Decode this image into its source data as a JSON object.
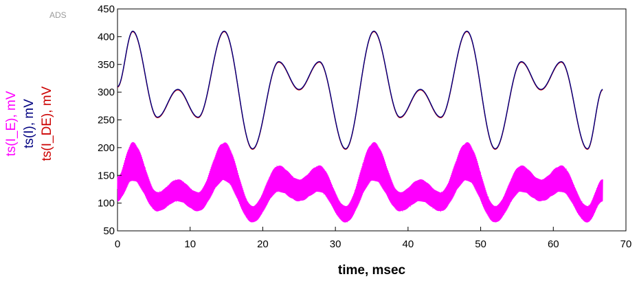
{
  "chart_data": {
    "type": "line",
    "watermark": "ADS",
    "xlabel": "time, msec",
    "ylabels": [
      {
        "text": "ts(I_E), mV",
        "color": "#ff00ff"
      },
      {
        "text": "ts(I), mV",
        "color": "#000080"
      },
      {
        "text": "ts(I_DE), mV",
        "color": "#cc0000"
      }
    ],
    "xlim": [
      0,
      70
    ],
    "ylim": [
      50,
      450
    ],
    "xticks": [
      0,
      10,
      20,
      30,
      40,
      50,
      60,
      70
    ],
    "yticks": [
      50,
      100,
      150,
      200,
      250,
      300,
      350,
      400,
      450
    ],
    "grid": false,
    "series": [
      {
        "name": "ts(I_DE), mV",
        "color": "#cc0000",
        "x": [
          0,
          2.1,
          5.5,
          8.3,
          11.1,
          14.7,
          18.6,
          22.2,
          25.0,
          27.8,
          31.4,
          35.3,
          38.9,
          41.7,
          44.5,
          48.1,
          52.0,
          55.6,
          58.3,
          61.1,
          64.7,
          66.8
        ],
        "y": [
          310,
          410,
          255,
          305,
          255,
          410,
          198,
          355,
          305,
          355,
          198,
          410,
          255,
          305,
          255,
          410,
          198,
          355,
          305,
          355,
          198,
          305
        ]
      },
      {
        "name": "ts(I), mV",
        "color": "#000080",
        "x": [
          0,
          2.1,
          5.5,
          8.3,
          11.1,
          14.7,
          18.6,
          22.2,
          25.0,
          27.8,
          31.4,
          35.3,
          38.9,
          41.7,
          44.5,
          48.1,
          52.0,
          55.6,
          58.3,
          61.1,
          64.7,
          66.8
        ],
        "y": [
          310,
          410,
          255,
          305,
          255,
          410,
          198,
          355,
          305,
          355,
          198,
          410,
          255,
          305,
          255,
          410,
          198,
          355,
          305,
          355,
          198,
          305
        ]
      },
      {
        "name": "ts(I_E), mV",
        "color": "#ff00ff",
        "x": [
          0,
          2.1,
          5.5,
          8.3,
          11.1,
          14.7,
          18.6,
          22.2,
          25.0,
          27.8,
          31.4,
          35.3,
          38.9,
          41.7,
          44.5,
          48.1,
          52.0,
          55.6,
          58.3,
          61.1,
          64.7,
          66.8
        ],
        "upper": [
          148,
          210,
          120,
          143,
          120,
          210,
          95,
          168,
          143,
          168,
          95,
          210,
          120,
          143,
          120,
          210,
          95,
          168,
          143,
          168,
          95,
          143
        ],
        "lower": [
          103,
          140,
          85,
          103,
          85,
          140,
          65,
          120,
          103,
          120,
          65,
          140,
          85,
          103,
          85,
          140,
          65,
          120,
          103,
          120,
          65,
          103
        ]
      }
    ]
  }
}
